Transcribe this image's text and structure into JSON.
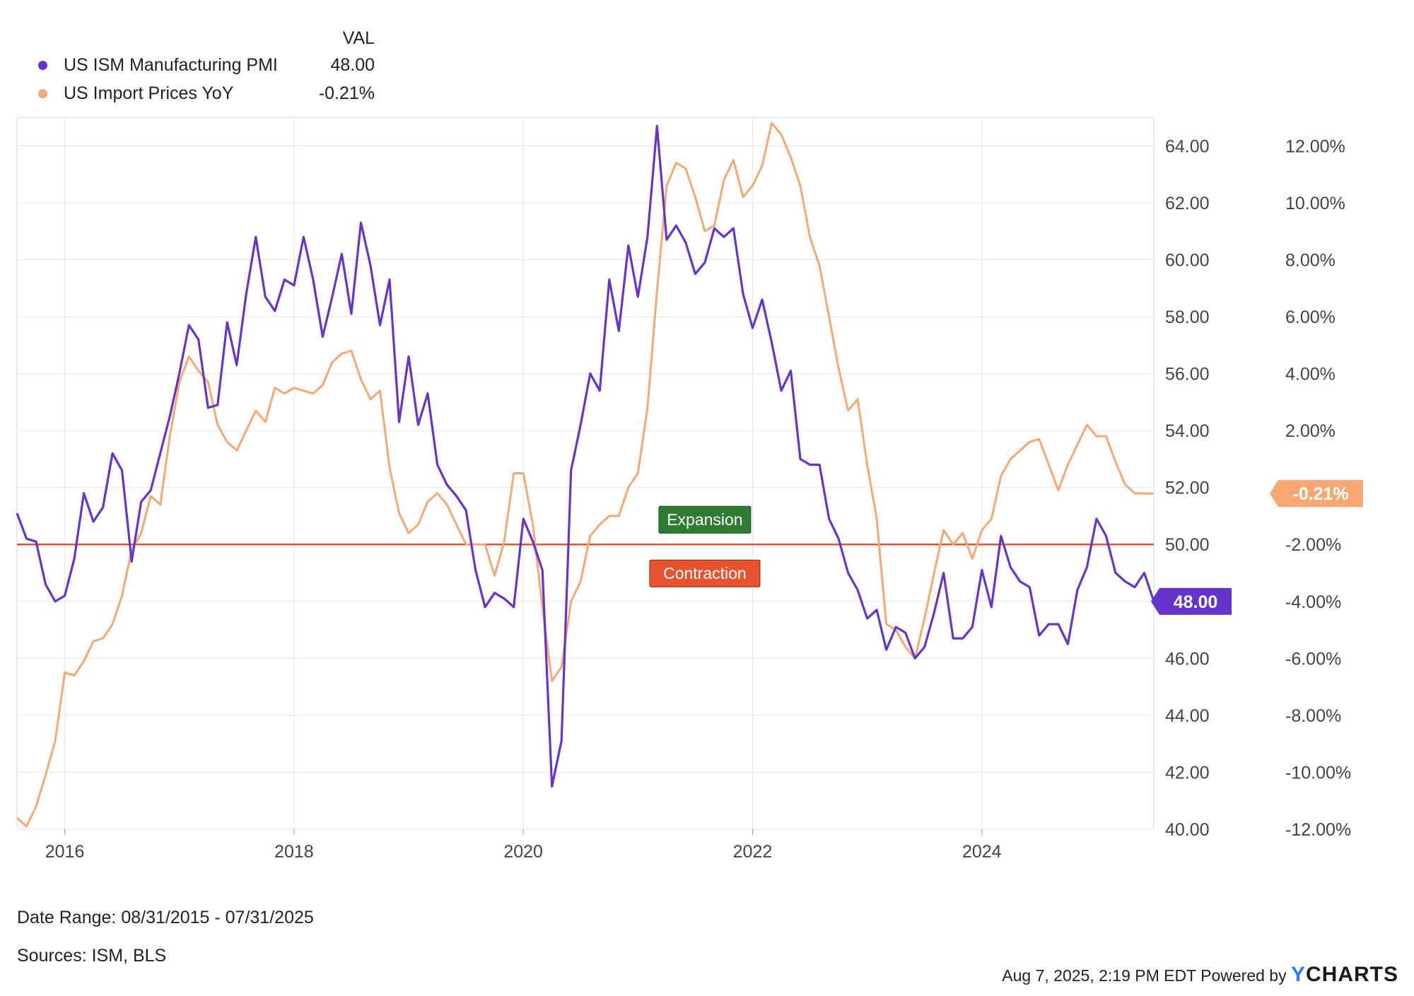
{
  "legend": {
    "header": "VAL",
    "items": [
      {
        "name": "US ISM Manufacturing PMI",
        "value": "48.00",
        "color": "#6633cc"
      },
      {
        "name": "US Import Prices YoY",
        "value": "-0.21%",
        "color": "#f7a872"
      }
    ]
  },
  "annotations": {
    "expansion": {
      "label": "Expansion",
      "color": "#2e7d32"
    },
    "contraction": {
      "label": "Contraction",
      "color": "#e8532f"
    },
    "threshold_value": 50,
    "threshold_color": "#e8532f"
  },
  "footer": {
    "date_range": "Date Range: 08/31/2015 - 07/31/2025",
    "sources": "Sources: ISM, BLS",
    "timestamp": "Aug 7, 2025, 2:19 PM EDT Powered by",
    "brand_y": "Y",
    "brand_rest": "CHARTS"
  },
  "chart_data": {
    "type": "line",
    "x_tick_labels": [
      "2016",
      "2018",
      "2020",
      "2022",
      "2024"
    ],
    "x_range": [
      "2015-08-31",
      "2025-07-31"
    ],
    "left_axis": {
      "range": [
        40,
        65
      ],
      "tick_labels": [
        "40.00",
        "42.00",
        "44.00",
        "46.00",
        "48.00",
        "50.00",
        "52.00",
        "54.00",
        "56.00",
        "58.00",
        "60.00",
        "62.00",
        "64.00"
      ]
    },
    "right_axis": {
      "range": [
        -12,
        13
      ],
      "tick_labels": [
        "-12.00%",
        "-10.00%",
        "-8.00%",
        "-6.00%",
        "-4.00%",
        "-2.00%",
        "0.00%",
        "2.00%",
        "4.00%",
        "6.00%",
        "8.00%",
        "10.00%",
        "12.00%"
      ]
    },
    "grid": true,
    "legend_position": "top-left",
    "series": [
      {
        "name": "US ISM Manufacturing PMI",
        "axis": "left",
        "color": "#6633cc",
        "last_value_label": "48.00",
        "points": [
          [
            "2015-08",
            51.1
          ],
          [
            "2015-09",
            50.2
          ],
          [
            "2015-10",
            50.1
          ],
          [
            "2015-11",
            48.6
          ],
          [
            "2015-12",
            48.0
          ],
          [
            "2016-01",
            48.2
          ],
          [
            "2016-02",
            49.5
          ],
          [
            "2016-03",
            51.8
          ],
          [
            "2016-04",
            50.8
          ],
          [
            "2016-05",
            51.3
          ],
          [
            "2016-06",
            53.2
          ],
          [
            "2016-07",
            52.6
          ],
          [
            "2016-08",
            49.4
          ],
          [
            "2016-09",
            51.5
          ],
          [
            "2016-10",
            51.9
          ],
          [
            "2016-11",
            53.2
          ],
          [
            "2016-12",
            54.5
          ],
          [
            "2017-01",
            56.0
          ],
          [
            "2017-02",
            57.7
          ],
          [
            "2017-03",
            57.2
          ],
          [
            "2017-04",
            54.8
          ],
          [
            "2017-05",
            54.9
          ],
          [
            "2017-06",
            57.8
          ],
          [
            "2017-07",
            56.3
          ],
          [
            "2017-08",
            58.8
          ],
          [
            "2017-09",
            60.8
          ],
          [
            "2017-10",
            58.7
          ],
          [
            "2017-11",
            58.2
          ],
          [
            "2017-12",
            59.3
          ],
          [
            "2018-01",
            59.1
          ],
          [
            "2018-02",
            60.8
          ],
          [
            "2018-03",
            59.3
          ],
          [
            "2018-04",
            57.3
          ],
          [
            "2018-05",
            58.7
          ],
          [
            "2018-06",
            60.2
          ],
          [
            "2018-07",
            58.1
          ],
          [
            "2018-08",
            61.3
          ],
          [
            "2018-09",
            59.8
          ],
          [
            "2018-10",
            57.7
          ],
          [
            "2018-11",
            59.3
          ],
          [
            "2018-12",
            54.3
          ],
          [
            "2019-01",
            56.6
          ],
          [
            "2019-02",
            54.2
          ],
          [
            "2019-03",
            55.3
          ],
          [
            "2019-04",
            52.8
          ],
          [
            "2019-05",
            52.1
          ],
          [
            "2019-06",
            51.7
          ],
          [
            "2019-07",
            51.2
          ],
          [
            "2019-08",
            49.1
          ],
          [
            "2019-09",
            47.8
          ],
          [
            "2019-10",
            48.3
          ],
          [
            "2019-11",
            48.1
          ],
          [
            "2019-12",
            47.8
          ],
          [
            "2020-01",
            50.9
          ],
          [
            "2020-02",
            50.1
          ],
          [
            "2020-03",
            49.1
          ],
          [
            "2020-04",
            41.5
          ],
          [
            "2020-05",
            43.1
          ],
          [
            "2020-06",
            52.6
          ],
          [
            "2020-07",
            54.2
          ],
          [
            "2020-08",
            56.0
          ],
          [
            "2020-09",
            55.4
          ],
          [
            "2020-10",
            59.3
          ],
          [
            "2020-11",
            57.5
          ],
          [
            "2020-12",
            60.5
          ],
          [
            "2021-01",
            58.7
          ],
          [
            "2021-02",
            60.8
          ],
          [
            "2021-03",
            64.7
          ],
          [
            "2021-04",
            60.7
          ],
          [
            "2021-05",
            61.2
          ],
          [
            "2021-06",
            60.6
          ],
          [
            "2021-07",
            59.5
          ],
          [
            "2021-08",
            59.9
          ],
          [
            "2021-09",
            61.1
          ],
          [
            "2021-10",
            60.8
          ],
          [
            "2021-11",
            61.1
          ],
          [
            "2021-12",
            58.8
          ],
          [
            "2022-01",
            57.6
          ],
          [
            "2022-02",
            58.6
          ],
          [
            "2022-03",
            57.1
          ],
          [
            "2022-04",
            55.4
          ],
          [
            "2022-05",
            56.1
          ],
          [
            "2022-06",
            53.0
          ],
          [
            "2022-07",
            52.8
          ],
          [
            "2022-08",
            52.8
          ],
          [
            "2022-09",
            50.9
          ],
          [
            "2022-10",
            50.2
          ],
          [
            "2022-11",
            49.0
          ],
          [
            "2022-12",
            48.4
          ],
          [
            "2023-01",
            47.4
          ],
          [
            "2023-02",
            47.7
          ],
          [
            "2023-03",
            46.3
          ],
          [
            "2023-04",
            47.1
          ],
          [
            "2023-05",
            46.9
          ],
          [
            "2023-06",
            46.0
          ],
          [
            "2023-07",
            46.4
          ],
          [
            "2023-08",
            47.6
          ],
          [
            "2023-09",
            49.0
          ],
          [
            "2023-10",
            46.7
          ],
          [
            "2023-11",
            46.7
          ],
          [
            "2023-12",
            47.1
          ],
          [
            "2024-01",
            49.1
          ],
          [
            "2024-02",
            47.8
          ],
          [
            "2024-03",
            50.3
          ],
          [
            "2024-04",
            49.2
          ],
          [
            "2024-05",
            48.7
          ],
          [
            "2024-06",
            48.5
          ],
          [
            "2024-07",
            46.8
          ],
          [
            "2024-08",
            47.2
          ],
          [
            "2024-09",
            47.2
          ],
          [
            "2024-10",
            46.5
          ],
          [
            "2024-11",
            48.4
          ],
          [
            "2024-12",
            49.2
          ],
          [
            "2025-01",
            50.9
          ],
          [
            "2025-02",
            50.3
          ],
          [
            "2025-03",
            49.0
          ],
          [
            "2025-04",
            48.7
          ],
          [
            "2025-05",
            48.5
          ],
          [
            "2025-06",
            49.0
          ],
          [
            "2025-07",
            48.0
          ]
        ]
      },
      {
        "name": "US Import Prices YoY",
        "axis": "right",
        "color": "#f7a872",
        "last_value_label": "-0.21%",
        "points": [
          [
            "2015-08",
            -11.6
          ],
          [
            "2015-09",
            -11.9
          ],
          [
            "2015-10",
            -11.2
          ],
          [
            "2015-11",
            -10.1
          ],
          [
            "2015-12",
            -8.9
          ],
          [
            "2016-01",
            -6.5
          ],
          [
            "2016-02",
            -6.6
          ],
          [
            "2016-03",
            -6.1
          ],
          [
            "2016-04",
            -5.4
          ],
          [
            "2016-05",
            -5.3
          ],
          [
            "2016-06",
            -4.8
          ],
          [
            "2016-07",
            -3.8
          ],
          [
            "2016-08",
            -2.2
          ],
          [
            "2016-09",
            -1.6
          ],
          [
            "2016-10",
            -0.3
          ],
          [
            "2016-11",
            -0.6
          ],
          [
            "2016-12",
            1.8
          ],
          [
            "2017-01",
            3.7
          ],
          [
            "2017-02",
            4.6
          ],
          [
            "2017-03",
            4.1
          ],
          [
            "2017-04",
            3.7
          ],
          [
            "2017-05",
            2.2
          ],
          [
            "2017-06",
            1.6
          ],
          [
            "2017-07",
            1.3
          ],
          [
            "2017-08",
            2.0
          ],
          [
            "2017-09",
            2.7
          ],
          [
            "2017-10",
            2.3
          ],
          [
            "2017-11",
            3.5
          ],
          [
            "2017-12",
            3.3
          ],
          [
            "2018-01",
            3.5
          ],
          [
            "2018-02",
            3.4
          ],
          [
            "2018-03",
            3.3
          ],
          [
            "2018-04",
            3.6
          ],
          [
            "2018-05",
            4.4
          ],
          [
            "2018-06",
            4.7
          ],
          [
            "2018-07",
            4.8
          ],
          [
            "2018-08",
            3.8
          ],
          [
            "2018-09",
            3.1
          ],
          [
            "2018-10",
            3.4
          ],
          [
            "2018-11",
            0.7
          ],
          [
            "2018-12",
            -0.9
          ],
          [
            "2019-01",
            -1.6
          ],
          [
            "2019-02",
            -1.3
          ],
          [
            "2019-03",
            -0.5
          ],
          [
            "2019-04",
            -0.2
          ],
          [
            "2019-05",
            -0.6
          ],
          [
            "2019-06",
            -1.3
          ],
          [
            "2019-07",
            -2.0
          ],
          [
            "2019-08",
            -2.0
          ],
          [
            "2019-09",
            -2.0
          ],
          [
            "2019-10",
            -3.1
          ],
          [
            "2019-11",
            -1.9
          ],
          [
            "2019-12",
            0.5
          ],
          [
            "2020-01",
            0.5
          ],
          [
            "2020-02",
            -1.3
          ],
          [
            "2020-03",
            -4.2
          ],
          [
            "2020-04",
            -6.8
          ],
          [
            "2020-05",
            -6.3
          ],
          [
            "2020-06",
            -4.0
          ],
          [
            "2020-07",
            -3.3
          ],
          [
            "2020-08",
            -1.7
          ],
          [
            "2020-09",
            -1.3
          ],
          [
            "2020-10",
            -1.0
          ],
          [
            "2020-11",
            -1.0
          ],
          [
            "2020-12",
            0.0
          ],
          [
            "2021-01",
            0.5
          ],
          [
            "2021-02",
            2.8
          ],
          [
            "2021-03",
            6.9
          ],
          [
            "2021-04",
            10.6
          ],
          [
            "2021-05",
            11.4
          ],
          [
            "2021-06",
            11.2
          ],
          [
            "2021-07",
            10.2
          ],
          [
            "2021-08",
            9.0
          ],
          [
            "2021-09",
            9.2
          ],
          [
            "2021-10",
            10.8
          ],
          [
            "2021-11",
            11.5
          ],
          [
            "2021-12",
            10.2
          ],
          [
            "2022-01",
            10.6
          ],
          [
            "2022-02",
            11.3
          ],
          [
            "2022-03",
            12.8
          ],
          [
            "2022-04",
            12.4
          ],
          [
            "2022-05",
            11.6
          ],
          [
            "2022-06",
            10.6
          ],
          [
            "2022-07",
            8.8
          ],
          [
            "2022-08",
            7.8
          ],
          [
            "2022-09",
            6.0
          ],
          [
            "2022-10",
            4.2
          ],
          [
            "2022-11",
            2.7
          ],
          [
            "2022-12",
            3.1
          ],
          [
            "2023-01",
            0.8
          ],
          [
            "2023-02",
            -1.1
          ],
          [
            "2023-03",
            -4.8
          ],
          [
            "2023-04",
            -5.0
          ],
          [
            "2023-05",
            -5.6
          ],
          [
            "2023-06",
            -6.0
          ],
          [
            "2023-07",
            -4.6
          ],
          [
            "2023-08",
            -3.0
          ],
          [
            "2023-09",
            -1.5
          ],
          [
            "2023-10",
            -2.0
          ],
          [
            "2023-11",
            -1.6
          ],
          [
            "2023-12",
            -2.5
          ],
          [
            "2024-01",
            -1.5
          ],
          [
            "2024-02",
            -1.1
          ],
          [
            "2024-03",
            0.4
          ],
          [
            "2024-04",
            1.0
          ],
          [
            "2024-05",
            1.3
          ],
          [
            "2024-06",
            1.6
          ],
          [
            "2024-07",
            1.7
          ],
          [
            "2024-08",
            0.8
          ],
          [
            "2024-09",
            -0.1
          ],
          [
            "2024-10",
            0.8
          ],
          [
            "2024-11",
            1.5
          ],
          [
            "2024-12",
            2.2
          ],
          [
            "2025-01",
            1.8
          ],
          [
            "2025-02",
            1.8
          ],
          [
            "2025-03",
            0.9
          ],
          [
            "2025-04",
            0.1
          ],
          [
            "2025-05",
            -0.2
          ],
          [
            "2025-06",
            -0.21
          ],
          [
            "2025-07",
            -0.21
          ]
        ]
      }
    ]
  }
}
